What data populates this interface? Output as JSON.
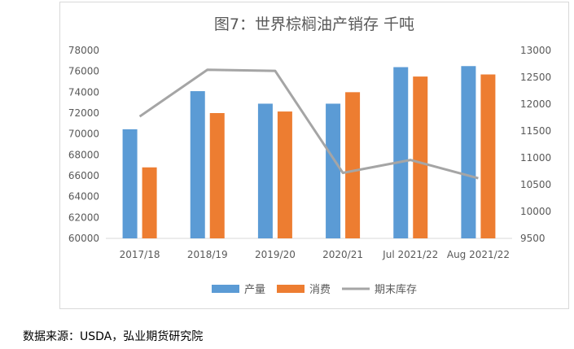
{
  "source_note": "数据来源：USDA，弘业期货研究院",
  "chart_data": {
    "type": "bar",
    "title": "图7：世界棕榈油产销存   千吨",
    "categories": [
      "2017/18",
      "2018/19",
      "2019/20",
      "2020/21",
      "Jul 2021/22",
      "Aug 2021/22"
    ],
    "series": [
      {
        "name": "产量",
        "type": "bar",
        "axis": "left",
        "color": "#5b9bd5",
        "values": [
          70450,
          74100,
          72900,
          72900,
          76400,
          76500
        ]
      },
      {
        "name": "消费",
        "type": "bar",
        "axis": "left",
        "color": "#ed7d31",
        "values": [
          66800,
          72000,
          72150,
          74000,
          75500,
          75700
        ]
      },
      {
        "name": "期末库存",
        "type": "line",
        "axis": "right",
        "color": "#a5a5a5",
        "values": [
          11770,
          12640,
          12620,
          10720,
          10960,
          10620
        ]
      }
    ],
    "y_left": {
      "min": 60000,
      "max": 78000,
      "step": 2000,
      "ticks": [
        "60000",
        "62000",
        "64000",
        "66000",
        "68000",
        "70000",
        "72000",
        "74000",
        "76000",
        "78000"
      ]
    },
    "y_right": {
      "min": 9500,
      "max": 13000,
      "step": 500,
      "ticks": [
        "9500",
        "10000",
        "10500",
        "11000",
        "11500",
        "12000",
        "12500",
        "13000"
      ]
    },
    "grid": false,
    "legend_position": "bottom"
  }
}
